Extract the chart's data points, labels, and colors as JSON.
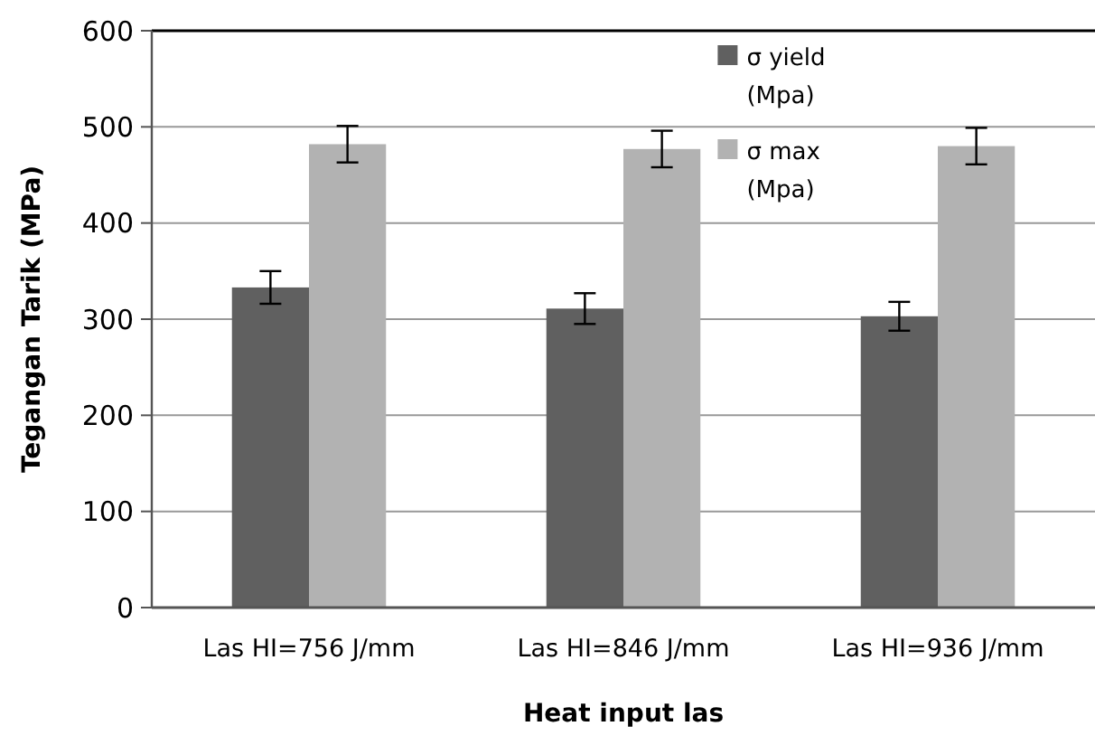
{
  "chart_data": {
    "type": "bar",
    "xlabel": "Heat input las",
    "ylabel": "Tegangan Tarik (MPa)",
    "categories": [
      "Las HI=756 J/mm",
      "Las HI=846 J/mm",
      "Las HI=936 J/mm"
    ],
    "series": [
      {
        "name": "σ yield (Mpa)",
        "color": "#606060",
        "values": [
          333,
          311,
          303
        ],
        "errors": [
          17,
          16,
          15
        ]
      },
      {
        "name": "σ max (Mpa)",
        "color": "#b2b2b2",
        "values": [
          482,
          477,
          480
        ],
        "errors": [
          19,
          19,
          19
        ]
      }
    ],
    "ylim": [
      0,
      600
    ],
    "yticks": [
      0,
      100,
      200,
      300,
      400,
      500,
      600
    ],
    "grid": "y",
    "legend": "top right"
  }
}
